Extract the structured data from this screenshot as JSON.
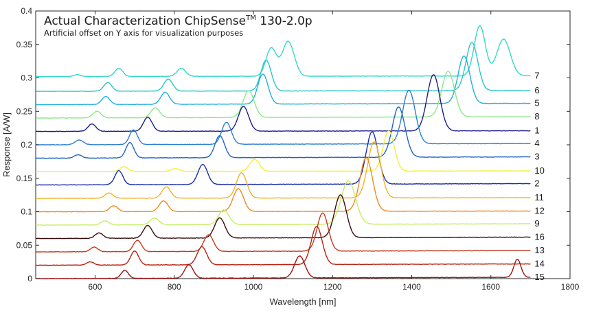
{
  "chart_data": {
    "type": "line",
    "title": "Actual Characterization ChipSense",
    "title_superscript": "TM",
    "title_suffix": " 130-2.0p",
    "subtitle": "Artificial offset on Y axis for visualization purposes",
    "xlabel": "Wavelength [nm]",
    "ylabel": "Response [A/W]",
    "xlim": [
      450,
      1800
    ],
    "ylim": [
      0,
      0.4
    ],
    "xticks": [
      600,
      800,
      1000,
      1200,
      1400,
      1600,
      1800
    ],
    "yticks": [
      0,
      0.05,
      0.1,
      0.15,
      0.2,
      0.25,
      0.3,
      0.35,
      0.4
    ],
    "xtick_labels": [
      "600",
      "800",
      "1000",
      "1200",
      "1400",
      "1600",
      "1800"
    ],
    "ytick_labels": [
      "0",
      "0.05",
      "0.1",
      "0.15",
      "0.2",
      "0.25",
      "0.3",
      "0.35",
      "0.4"
    ],
    "grid": false,
    "x_range": [
      450,
      1700
    ],
    "series": [
      {
        "name": "7",
        "color": "#33d9c7",
        "baseline": 0.302,
        "end": 0.303,
        "peaks": [
          [
            555,
            0.003,
            8
          ],
          [
            660,
            0.012,
            10
          ],
          [
            818,
            0.012,
            11
          ],
          [
            1045,
            0.042,
            13
          ],
          [
            1088,
            0.052,
            15
          ],
          [
            1572,
            0.075,
            14
          ],
          [
            1632,
            0.055,
            17
          ]
        ]
      },
      {
        "name": "6",
        "color": "#2cc6c6",
        "baseline": 0.28,
        "end": 0.281,
        "peaks": [
          [
            632,
            0.013,
            10
          ],
          [
            785,
            0.018,
            11
          ],
          [
            1032,
            0.046,
            13
          ],
          [
            1552,
            0.072,
            15
          ]
        ]
      },
      {
        "name": "5",
        "color": "#22aee0",
        "baseline": 0.26,
        "end": 0.262,
        "peaks": [
          [
            627,
            0.012,
            10
          ],
          [
            777,
            0.018,
            11
          ],
          [
            1024,
            0.045,
            13
          ],
          [
            1532,
            0.071,
            15
          ]
        ]
      },
      {
        "name": "8",
        "color": "#8ce88c",
        "baseline": 0.24,
        "end": 0.242,
        "peaks": [
          [
            605,
            0.01,
            10
          ],
          [
            752,
            0.015,
            11
          ],
          [
            988,
            0.04,
            14
          ],
          [
            1492,
            0.068,
            16
          ]
        ]
      },
      {
        "name": "1",
        "color": "#1c1c8e",
        "baseline": 0.22,
        "end": 0.221,
        "peaks": [
          [
            592,
            0.011,
            10
          ],
          [
            733,
            0.021,
            11
          ],
          [
            975,
            0.037,
            13
          ],
          [
            1455,
            0.084,
            16
          ]
        ]
      },
      {
        "name": "4",
        "color": "#2a7ed0",
        "baseline": 0.2,
        "end": 0.202,
        "peaks": [
          [
            560,
            0.007,
            10
          ],
          [
            697,
            0.022,
            10
          ],
          [
            932,
            0.033,
            12
          ],
          [
            1393,
            0.08,
            16
          ]
        ]
      },
      {
        "name": "3",
        "color": "#1f63c1",
        "baseline": 0.18,
        "end": 0.182,
        "peaks": [
          [
            557,
            0.005,
            9
          ],
          [
            688,
            0.023,
            10
          ],
          [
            915,
            0.033,
            12
          ],
          [
            1367,
            0.075,
            16
          ]
        ]
      },
      {
        "name": "10",
        "color": "#f4f03c",
        "baseline": 0.16,
        "end": 0.161,
        "peaks": [
          [
            673,
            0.007,
            10
          ],
          [
            803,
            0.004,
            10
          ],
          [
            1003,
            0.018,
            12
          ],
          [
            1342,
            0.06,
            14
          ]
        ]
      },
      {
        "name": "2",
        "color": "#1a2ea8",
        "baseline": 0.14,
        "end": 0.142,
        "peaks": [
          [
            660,
            0.021,
            10
          ],
          [
            872,
            0.03,
            12
          ],
          [
            1300,
            0.078,
            15
          ]
        ]
      },
      {
        "name": "11",
        "color": "#f3b229",
        "baseline": 0.12,
        "end": 0.121,
        "peaks": [
          [
            635,
            0.008,
            10
          ],
          [
            780,
            0.017,
            11
          ],
          [
            970,
            0.038,
            13
          ],
          [
            1305,
            0.084,
            16
          ]
        ]
      },
      {
        "name": "12",
        "color": "#f08a1f",
        "baseline": 0.1,
        "end": 0.101,
        "peaks": [
          [
            647,
            0.009,
            10
          ],
          [
            773,
            0.016,
            11
          ],
          [
            962,
            0.034,
            13
          ],
          [
            1285,
            0.08,
            16
          ]
        ]
      },
      {
        "name": "9",
        "color": "#c8ec6a",
        "baseline": 0.08,
        "end": 0.082,
        "peaks": [
          [
            625,
            0.006,
            10
          ],
          [
            750,
            0.01,
            11
          ],
          [
            925,
            0.022,
            13
          ],
          [
            1240,
            0.065,
            18
          ]
        ]
      },
      {
        "name": "16",
        "color": "#3a0a0a",
        "baseline": 0.06,
        "end": 0.062,
        "peaks": [
          [
            610,
            0.008,
            10
          ],
          [
            733,
            0.019,
            11
          ],
          [
            915,
            0.03,
            13
          ],
          [
            1220,
            0.064,
            15
          ]
        ]
      },
      {
        "name": "13",
        "color": "#c43a1c",
        "baseline": 0.04,
        "end": 0.042,
        "peaks": [
          [
            598,
            0.007,
            9
          ],
          [
            707,
            0.017,
            10
          ],
          [
            887,
            0.025,
            12
          ],
          [
            1175,
            0.057,
            14
          ]
        ]
      },
      {
        "name": "14",
        "color": "#b8200f",
        "baseline": 0.02,
        "end": 0.022,
        "peaks": [
          [
            588,
            0.005,
            9
          ],
          [
            700,
            0.021,
            10
          ],
          [
            870,
            0.027,
            12
          ],
          [
            1160,
            0.057,
            14
          ]
        ]
      },
      {
        "name": "15",
        "color": "#9e0f0f",
        "baseline": 0.0,
        "end": 0.002,
        "peaks": [
          [
            675,
            0.012,
            9
          ],
          [
            837,
            0.02,
            11
          ],
          [
            1117,
            0.033,
            13
          ],
          [
            1667,
            0.027,
            9
          ]
        ]
      }
    ]
  }
}
